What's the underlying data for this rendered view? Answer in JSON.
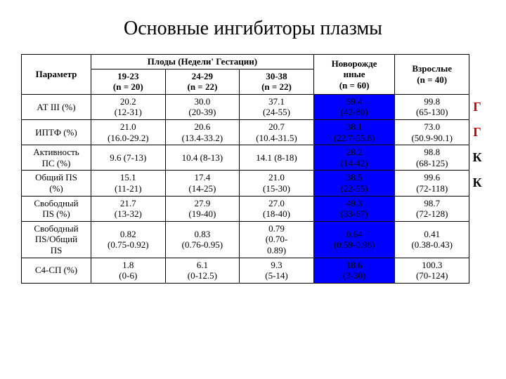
{
  "title": "Основные ингибиторы плазмы",
  "columns": {
    "param": "Параметр",
    "fetus_group": "Плоды (Недели' Гестации)",
    "c1": "19-23\n(n = 20)",
    "c2": "24-29\n(n = 22)",
    "c3": "30-38\n(n = 22)",
    "c4": "Новорожде\nнные\n(n = 60)",
    "c5": "Взрослые\n(n = 40)"
  },
  "rows": [
    {
      "param": "АТ III (%)",
      "v": [
        "20.2\n(12-31)",
        "30.0\n(20-39)",
        "37.1\n(24-55)",
        "59.4\n(42-80)",
        "99.8\n(65-130)"
      ],
      "side": "Г",
      "sideColor": "#c00000"
    },
    {
      "param": "ИПТФ (%)",
      "v": [
        "21.0\n(16.0-29.2)",
        "20.6\n(13.4-33.2)",
        "20.7\n(10.4-31.5)",
        "38.1\n(22.7-55.8)",
        "73.0\n(50.9-90.1)"
      ],
      "side": "Г",
      "sideColor": "#c00000"
    },
    {
      "param": "Активность\nПС (%)",
      "v": [
        "9.6 (7-13)",
        "10.4 (8-13)",
        "14.1 (8-18)",
        "28.2\n(14-42)",
        "98.8\n(68-125)"
      ],
      "side": "К",
      "sideColor": "#000000"
    },
    {
      "param": "Общий ПS\n(%)",
      "v": [
        "15.1\n(11-21)",
        "17.4\n(14-25)",
        "21.0\n(15-30)",
        "38.5\n(22-55)",
        "99.6\n(72-118)"
      ],
      "side": "К",
      "sideColor": "#000000"
    },
    {
      "param": "Свободный\nПS (%)",
      "v": [
        "21.7\n(13-32)",
        "27.9\n(19-40)",
        "27.0\n(18-40)",
        "49.3\n(33-67)",
        "98.7\n(72-128)"
      ],
      "side": "",
      "sideColor": ""
    },
    {
      "param": "Свободный\nПS/Общий\nПS",
      "v": [
        "0.82\n(0.75-0.92)",
        "0.83\n(0.76-0.95)",
        "0.79\n(0.70-\n0.89)",
        "0.64\n(0.59-0.98)",
        "0.41\n(0.38-0.43)"
      ],
      "side": "",
      "sideColor": ""
    },
    {
      "param": "С4-СП (%)",
      "v": [
        "1.8\n(0-6)",
        "6.1\n(0-12.5)",
        "9.3\n(5-14)",
        "18.6\n(3-30)",
        "100.3\n(70-124)"
      ],
      "side": "",
      "sideColor": ""
    }
  ],
  "highlight_col": 3,
  "highlight_bg": "#0000ff"
}
